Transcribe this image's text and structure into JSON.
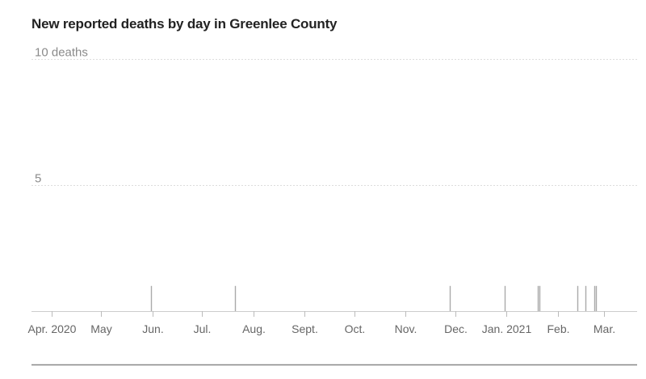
{
  "chart_data": {
    "type": "bar",
    "title": "New reported deaths by day in Greenlee County",
    "xlabel": "",
    "ylabel": "",
    "ylim": [
      0,
      10
    ],
    "x_range": [
      "2020-03-20",
      "2021-03-21"
    ],
    "y_ticks": [
      {
        "value": 10,
        "label": "10 deaths"
      },
      {
        "value": 5,
        "label": "5"
      }
    ],
    "x_ticks": [
      {
        "date": "2020-04-01",
        "label": "Apr. 2020"
      },
      {
        "date": "2020-05-01",
        "label": "May"
      },
      {
        "date": "2020-06-01",
        "label": "Jun."
      },
      {
        "date": "2020-07-01",
        "label": "Jul."
      },
      {
        "date": "2020-08-01",
        "label": "Aug."
      },
      {
        "date": "2020-09-01",
        "label": "Sept."
      },
      {
        "date": "2020-10-01",
        "label": "Oct."
      },
      {
        "date": "2020-11-01",
        "label": "Nov."
      },
      {
        "date": "2020-12-01",
        "label": "Dec."
      },
      {
        "date": "2021-01-01",
        "label": "Jan. 2021"
      },
      {
        "date": "2021-02-01",
        "label": "Feb."
      },
      {
        "date": "2021-03-01",
        "label": "Mar."
      }
    ],
    "points": [
      {
        "date": "2020-05-31",
        "value": 1
      },
      {
        "date": "2020-07-21",
        "value": 1
      },
      {
        "date": "2020-11-28",
        "value": 1
      },
      {
        "date": "2020-12-31",
        "value": 1
      },
      {
        "date": "2021-01-20",
        "value": 1
      },
      {
        "date": "2021-01-21",
        "value": 1
      },
      {
        "date": "2021-02-13",
        "value": 1
      },
      {
        "date": "2021-02-18",
        "value": 1
      },
      {
        "date": "2021-02-23",
        "value": 1
      },
      {
        "date": "2021-02-24",
        "value": 1
      }
    ],
    "grid": true,
    "colors": {
      "bar": "#aaaaaa",
      "grid": "#dddddd",
      "axis": "#cccccc",
      "bottom_rule": "#888888"
    }
  }
}
